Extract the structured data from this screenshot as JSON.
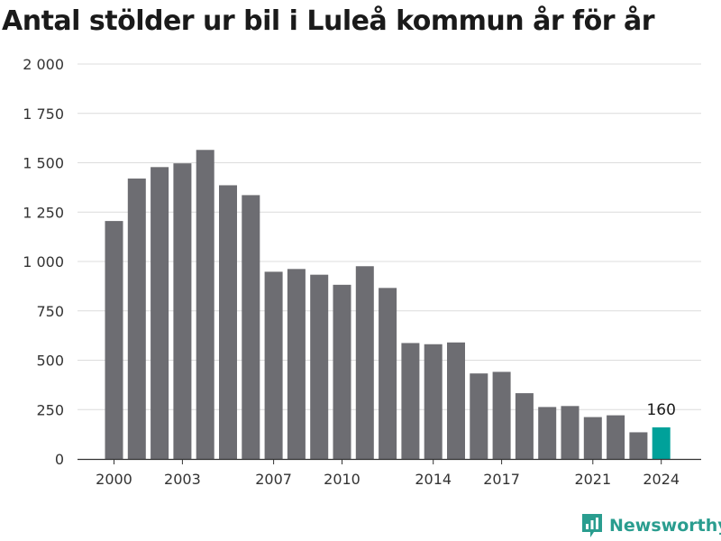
{
  "chart_data": {
    "type": "bar",
    "title": "Antal stölder ur bil i Luleå kommun år för år",
    "xlabel": "",
    "ylabel": "",
    "categories": [
      "2000",
      "2001",
      "2002",
      "2003",
      "2004",
      "2005",
      "2006",
      "2007",
      "2008",
      "2009",
      "2010",
      "2011",
      "2012",
      "2013",
      "2014",
      "2015",
      "2016",
      "2017",
      "2018",
      "2019",
      "2020",
      "2021",
      "2022",
      "2023",
      "2024"
    ],
    "values": [
      1205,
      1420,
      1478,
      1497,
      1565,
      1386,
      1336,
      948,
      962,
      933,
      882,
      976,
      866,
      587,
      581,
      590,
      433,
      441,
      333,
      263,
      268,
      212,
      221,
      135,
      160
    ],
    "ylim": [
      0,
      2000
    ],
    "yticks": [
      0,
      250,
      500,
      750,
      1000,
      1250,
      1500,
      1750,
      2000
    ],
    "ytick_labels": [
      "0",
      "250",
      "500",
      "750",
      "1 000",
      "1 250",
      "1 500",
      "1 750",
      "2 000"
    ],
    "xtick_labels": [
      "2000",
      "2003",
      "2007",
      "2010",
      "2014",
      "2017",
      "2021",
      "2024"
    ],
    "highlight": {
      "category": "2024",
      "label": "160"
    },
    "grid": true,
    "colors": {
      "bar": "#6d6d72",
      "highlight": "#00a19a",
      "grid": "#dcdcdc",
      "axis": "#333333"
    }
  },
  "brand": {
    "name": "Newsworthy",
    "icon": "newsworthy-logo-icon",
    "color": "#2a9d8f"
  }
}
